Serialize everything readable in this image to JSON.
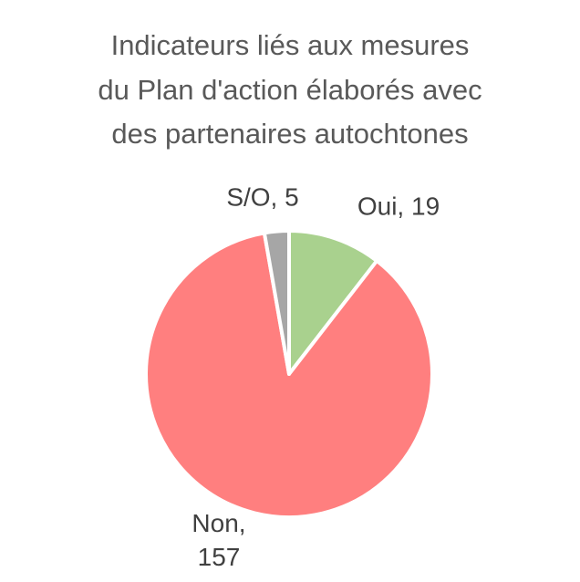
{
  "chart_data": {
    "type": "pie",
    "title": [
      "Indicateurs liés aux mesures",
      "du Plan d'action élaborés avec",
      "des partenaires autochtones"
    ],
    "categories": [
      "Oui",
      "Non",
      "S/O"
    ],
    "values": [
      19,
      157,
      5
    ],
    "value_labels": [
      "Oui, 19",
      "Non, 157",
      "S/O, 5"
    ],
    "colors": [
      "#a9d18e",
      "#ff7f7f",
      "#a6a6a6"
    ]
  }
}
